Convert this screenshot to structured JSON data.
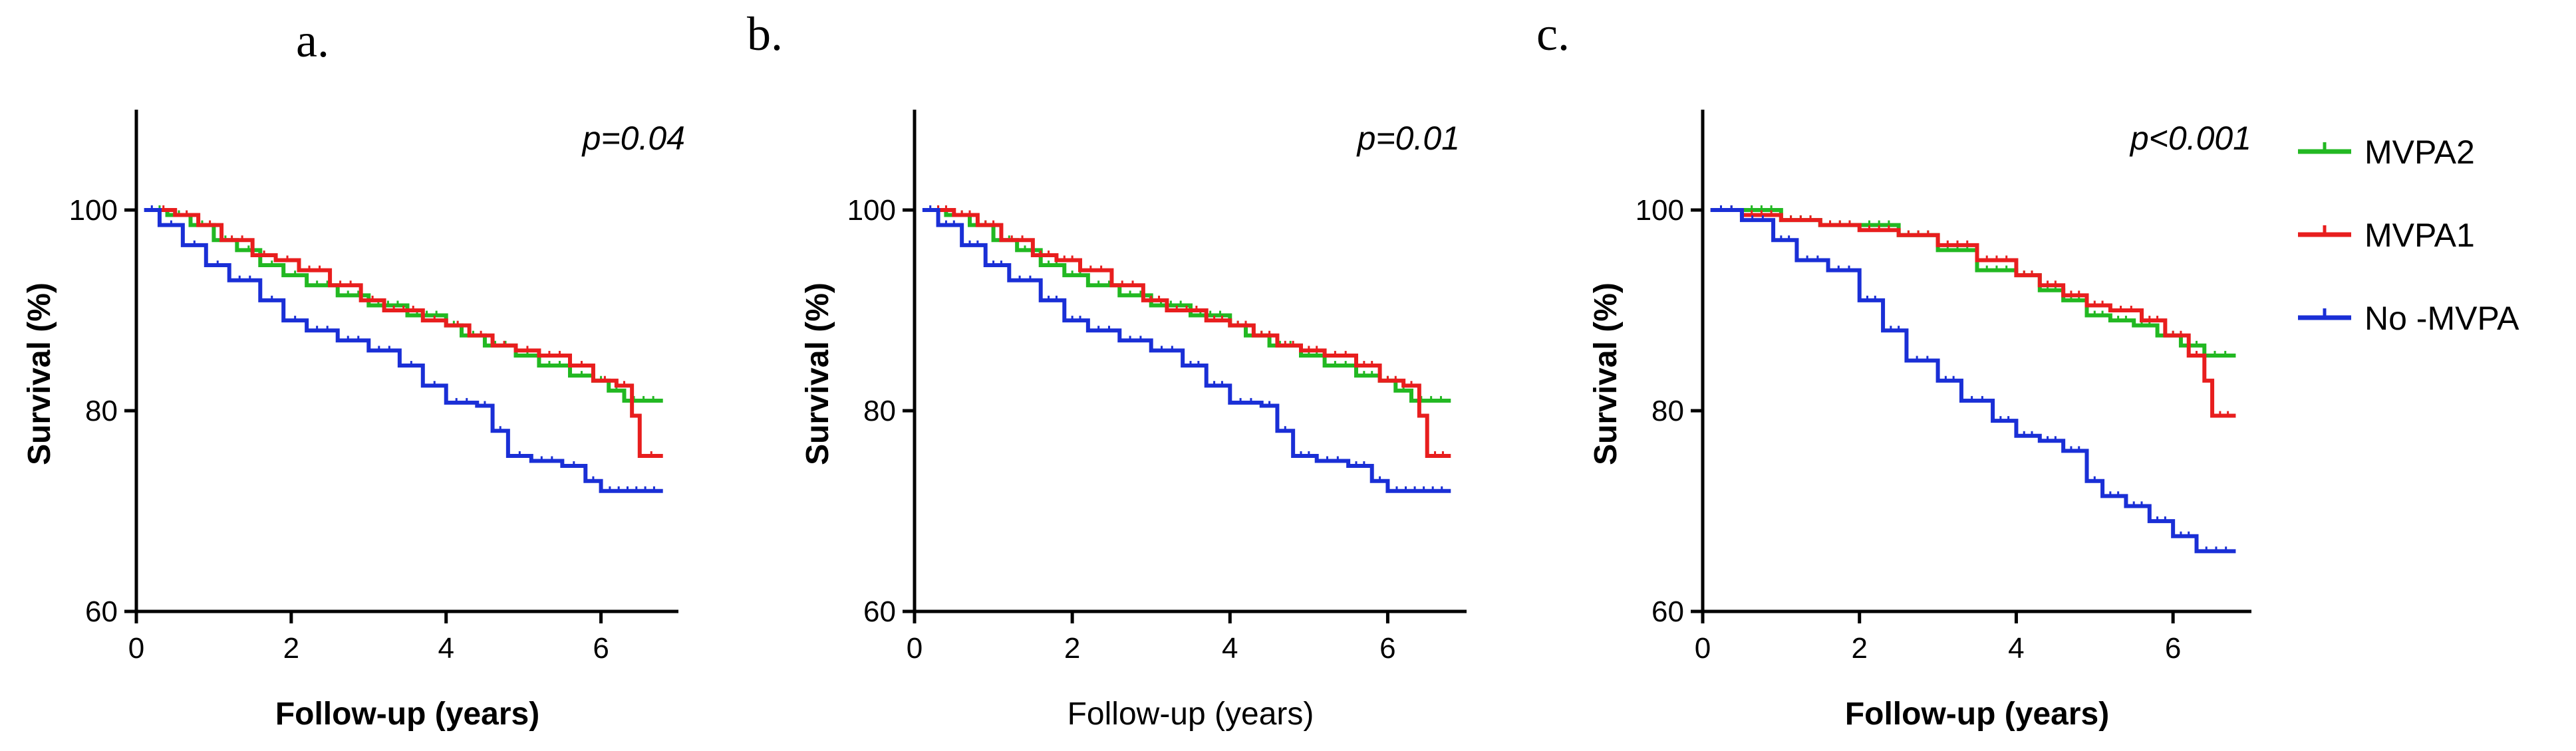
{
  "colors": {
    "mvpa2": "#22b822",
    "mvpa1": "#e81e1e",
    "nompva": "#1a2fd6"
  },
  "legend": [
    {
      "name": "MVPA2",
      "color_key": "mvpa2"
    },
    {
      "name": "MVPA1",
      "color_key": "mvpa1"
    },
    {
      "name": "No -MVPA",
      "color_key": "nompva"
    }
  ],
  "chart_data": [
    {
      "type": "line",
      "panel_label": "a.",
      "annotation": "p=0.04",
      "title": "",
      "xlabel": "Follow-up (years)",
      "xlabel_bold": true,
      "ylabel": "Survival (%)",
      "xlim": [
        0,
        7
      ],
      "ylim": [
        60,
        110
      ],
      "xticks": [
        0,
        2,
        4,
        6
      ],
      "yticks": [
        60,
        80,
        100
      ],
      "series": [
        {
          "name": "MVPA2",
          "color_key": "mvpa2",
          "x": [
            0.2,
            0.4,
            0.7,
            1.0,
            1.3,
            1.6,
            1.9,
            2.2,
            2.6,
            3.0,
            3.5,
            4.0,
            4.2,
            4.5,
            4.9,
            5.2,
            5.6,
            5.9,
            6.1,
            6.3,
            6.8
          ],
          "y": [
            100,
            99.5,
            98.5,
            97,
            96,
            94.5,
            93.5,
            92.5,
            91.5,
            90.5,
            89.5,
            88.5,
            87.5,
            86.5,
            85.5,
            84.5,
            83.5,
            83,
            82,
            81,
            81
          ]
        },
        {
          "name": "MVPA1",
          "color_key": "mvpa1",
          "x": [
            0.2,
            0.5,
            0.8,
            1.1,
            1.5,
            1.8,
            2.1,
            2.5,
            2.9,
            3.2,
            3.7,
            4.0,
            4.3,
            4.6,
            4.9,
            5.2,
            5.6,
            5.9,
            6.2,
            6.4,
            6.5,
            6.8
          ],
          "y": [
            100,
            99.5,
            98.5,
            97,
            95.5,
            95,
            94,
            92.5,
            91,
            90,
            89,
            88.5,
            87.5,
            86.5,
            86,
            85.5,
            84.5,
            83,
            82.5,
            79.5,
            75.5,
            75.5
          ]
        },
        {
          "name": "No -MVPA",
          "color_key": "nompva",
          "x": [
            0.1,
            0.3,
            0.6,
            0.9,
            1.2,
            1.6,
            1.9,
            2.2,
            2.6,
            3.0,
            3.4,
            3.7,
            4.0,
            4.4,
            4.6,
            4.8,
            5.1,
            5.5,
            5.8,
            6.0,
            6.8
          ],
          "y": [
            100,
            98.5,
            96.5,
            94.5,
            93,
            91,
            89,
            88,
            87,
            86,
            84.5,
            82.5,
            80.8,
            80.5,
            78,
            75.5,
            75,
            74.5,
            73,
            72,
            72
          ]
        }
      ]
    },
    {
      "type": "line",
      "panel_label": "b.",
      "annotation": "p=0.01",
      "title": "",
      "xlabel": "Follow-up (years)",
      "xlabel_bold": false,
      "ylabel": "Survival (%)",
      "xlim": [
        0,
        7
      ],
      "ylim": [
        60,
        110
      ],
      "xticks": [
        0,
        2,
        4,
        6
      ],
      "yticks": [
        60,
        80,
        100
      ],
      "series": [
        {
          "name": "MVPA2",
          "color_key": "mvpa2",
          "x": [
            0.2,
            0.4,
            0.7,
            1.0,
            1.3,
            1.6,
            1.9,
            2.2,
            2.6,
            3.0,
            3.5,
            4.0,
            4.2,
            4.5,
            4.9,
            5.2,
            5.6,
            5.9,
            6.1,
            6.3,
            6.8
          ],
          "y": [
            100,
            99.5,
            98.5,
            97,
            96,
            94.5,
            93.5,
            92.5,
            91.5,
            90.5,
            89.5,
            88.5,
            87.5,
            86.5,
            85.5,
            84.5,
            83.5,
            83,
            82,
            81,
            81
          ]
        },
        {
          "name": "MVPA1",
          "color_key": "mvpa1",
          "x": [
            0.2,
            0.5,
            0.8,
            1.1,
            1.5,
            1.8,
            2.1,
            2.5,
            2.9,
            3.2,
            3.7,
            4.0,
            4.3,
            4.6,
            4.9,
            5.2,
            5.6,
            5.9,
            6.2,
            6.4,
            6.5,
            6.8
          ],
          "y": [
            100,
            99.5,
            98.5,
            97,
            95.5,
            95,
            94,
            92.5,
            91,
            90,
            89,
            88.5,
            87.5,
            86.5,
            86,
            85.5,
            84.5,
            83,
            82.5,
            79.5,
            75.5,
            75.5
          ]
        },
        {
          "name": "No -MVPA",
          "color_key": "nompva",
          "x": [
            0.1,
            0.3,
            0.6,
            0.9,
            1.2,
            1.6,
            1.9,
            2.2,
            2.6,
            3.0,
            3.4,
            3.7,
            4.0,
            4.4,
            4.6,
            4.8,
            5.1,
            5.5,
            5.8,
            6.0,
            6.8
          ],
          "y": [
            100,
            98.5,
            96.5,
            94.5,
            93,
            91,
            89,
            88,
            87,
            86,
            84.5,
            82.5,
            80.8,
            80.5,
            78,
            75.5,
            75,
            74.5,
            73,
            72,
            72
          ]
        }
      ]
    },
    {
      "type": "line",
      "panel_label": "c.",
      "annotation": "p<0.001",
      "title": "",
      "xlabel": "Follow-up (years)",
      "xlabel_bold": true,
      "ylabel": "Survival (%)",
      "xlim": [
        0,
        7
      ],
      "ylim": [
        60,
        110
      ],
      "xticks": [
        0,
        2,
        4,
        6
      ],
      "yticks": [
        60,
        80,
        100
      ],
      "series": [
        {
          "name": "MVPA2",
          "color_key": "mvpa2",
          "x": [
            0.1,
            0.5,
            1.0,
            1.5,
            2.0,
            2.5,
            3.0,
            3.5,
            4.0,
            4.3,
            4.6,
            4.9,
            5.2,
            5.5,
            5.8,
            6.1,
            6.4,
            6.8
          ],
          "y": [
            100,
            100,
            99,
            98.5,
            98.5,
            97.5,
            96,
            94,
            93.5,
            92,
            91,
            89.5,
            89,
            88.5,
            87.5,
            86.5,
            85.5,
            85.5
          ]
        },
        {
          "name": "MVPA1",
          "color_key": "mvpa1",
          "x": [
            0.1,
            0.5,
            1.0,
            1.5,
            2.0,
            2.5,
            3.0,
            3.5,
            4.0,
            4.3,
            4.6,
            4.9,
            5.2,
            5.6,
            5.9,
            6.2,
            6.4,
            6.5,
            6.8
          ],
          "y": [
            100,
            99.5,
            99,
            98.5,
            98,
            97.5,
            96.5,
            95,
            93.5,
            92.5,
            91.5,
            90.5,
            90,
            89,
            87.5,
            85.5,
            83,
            79.5,
            79.5
          ]
        },
        {
          "name": "No -MVPA",
          "color_key": "nompva",
          "x": [
            0.1,
            0.5,
            0.9,
            1.2,
            1.6,
            2.0,
            2.3,
            2.6,
            3.0,
            3.3,
            3.7,
            4.0,
            4.3,
            4.6,
            4.9,
            5.1,
            5.4,
            5.7,
            6.0,
            6.3,
            6.8
          ],
          "y": [
            100,
            99,
            97,
            95,
            94,
            91,
            88,
            85,
            83,
            81,
            79,
            77.5,
            77,
            76,
            73,
            71.5,
            70.5,
            69,
            67.5,
            66,
            66
          ]
        }
      ]
    }
  ]
}
